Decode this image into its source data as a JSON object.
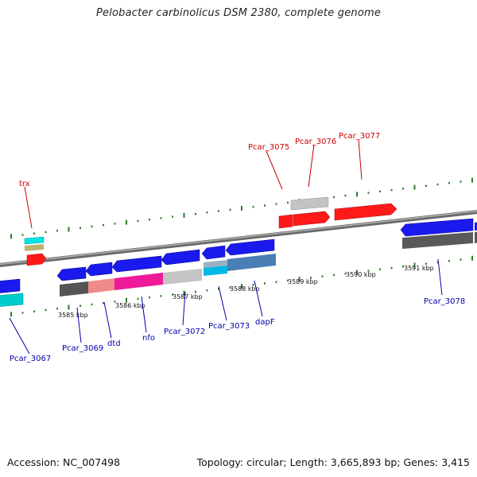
{
  "title": "Pelobacter carbinolicus DSM 2380, complete genome",
  "footer": {
    "accession": "Accession: NC_007498",
    "topology": "Topology: circular; Length: 3,665,893 bp; Genes: 3,415"
  },
  "colors": {
    "forward_label": "#cc0000",
    "reverse_label": "#0000aa",
    "tick": "#2e7d2e",
    "backbone": "#808080"
  },
  "kbp_labels": [
    "3585 kbp",
    "3586 kbp",
    "3587 kbp",
    "3588 kbp",
    "3589 kbp",
    "3590 kbp",
    "3591 kbp"
  ],
  "gene_labels": {
    "forward": [
      "trx",
      "Pcar_3075",
      "Pcar_3076",
      "Pcar_3077"
    ],
    "reverse": [
      "Pcar_3067",
      "Pcar_3069",
      "dtd",
      "nfo",
      "Pcar_3072",
      "Pcar_3073",
      "dapF",
      "Pcar_3078"
    ]
  }
}
